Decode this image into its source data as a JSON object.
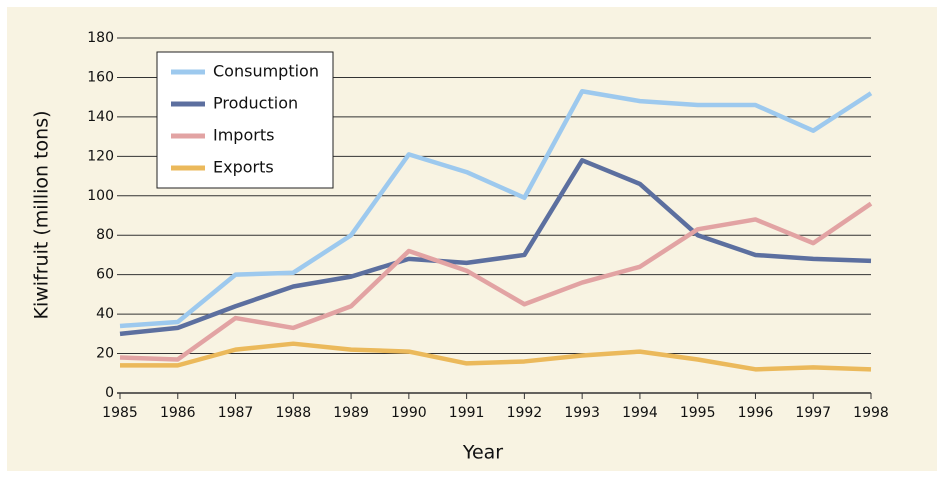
{
  "chart_data": {
    "type": "line",
    "x_label": "Year",
    "y_label": "Kiwifruit (million tons)",
    "x": [
      1985,
      1986,
      1987,
      1988,
      1989,
      1990,
      1991,
      1992,
      1993,
      1994,
      1995,
      1996,
      1997,
      1998
    ],
    "xlim": [
      1985,
      1998
    ],
    "xticks": [
      1985,
      1986,
      1987,
      1988,
      1989,
      1990,
      1991,
      1992,
      1993,
      1994,
      1995,
      1996,
      1997,
      1998
    ],
    "ylim": [
      0,
      180
    ],
    "yticks": [
      0,
      20,
      40,
      60,
      80,
      100,
      120,
      140,
      160,
      180
    ],
    "grid": true,
    "legend": "upper left",
    "series": [
      {
        "name": "Consumption",
        "color": "#9dc9ee",
        "values": [
          34,
          36,
          60,
          61,
          80,
          121,
          112,
          99,
          153,
          148,
          146,
          146,
          133,
          152
        ]
      },
      {
        "name": "Production",
        "color": "#5c6f9f",
        "values": [
          30,
          33,
          44,
          54,
          59,
          68,
          66,
          70,
          118,
          106,
          80,
          70,
          68,
          67
        ]
      },
      {
        "name": "Imports",
        "color": "#e2a3a3",
        "values": [
          18,
          17,
          38,
          33,
          44,
          72,
          62,
          45,
          56,
          64,
          83,
          88,
          76,
          96
        ]
      },
      {
        "name": "Exports",
        "color": "#ebb95b",
        "values": [
          14,
          14,
          22,
          25,
          22,
          21,
          15,
          16,
          19,
          21,
          17,
          12,
          13,
          12
        ]
      }
    ]
  }
}
